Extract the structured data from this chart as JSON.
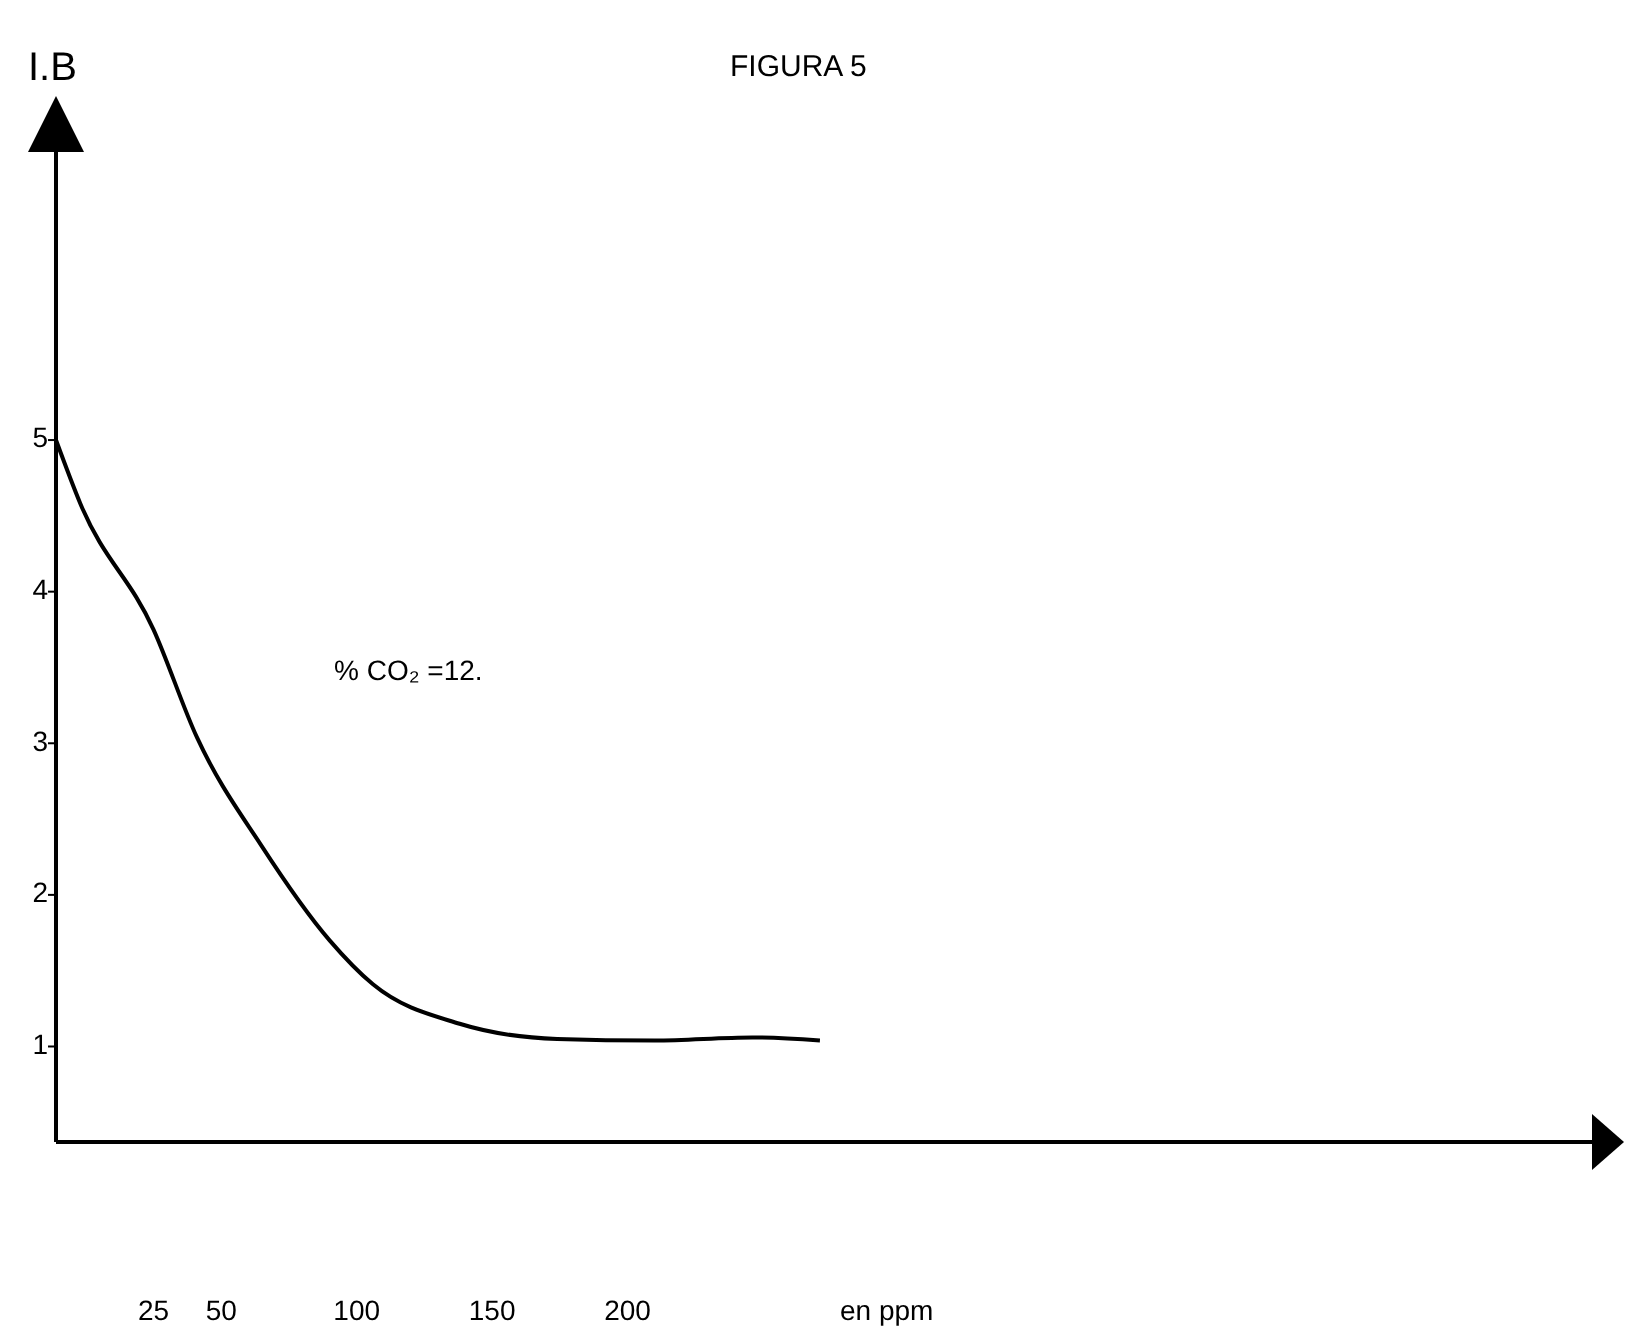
{
  "chart_data": {
    "type": "line",
    "title": "FIGURA 5",
    "xlabel": "en ppm",
    "ylabel": "I.B",
    "annotations": [
      "% CO₂ =12."
    ],
    "x": [
      -11,
      -2,
      25,
      41,
      65,
      90,
      106,
      138,
      174,
      210,
      246,
      271
    ],
    "series": [
      {
        "color": "#000000",
        "values": [
          5,
          4.58,
          3.75,
          3.04,
          2.32,
          1.7,
          1.41,
          1.15,
          1.05,
          1.04,
          1.06,
          1.04
        ]
      }
    ],
    "xlim": [
      -11,
      556
    ],
    "xticks": [
      25,
      50,
      100,
      150,
      200
    ],
    "ylim": [
      0.37,
      6.9
    ],
    "yticks": [
      1,
      2,
      3,
      4,
      5
    ]
  }
}
